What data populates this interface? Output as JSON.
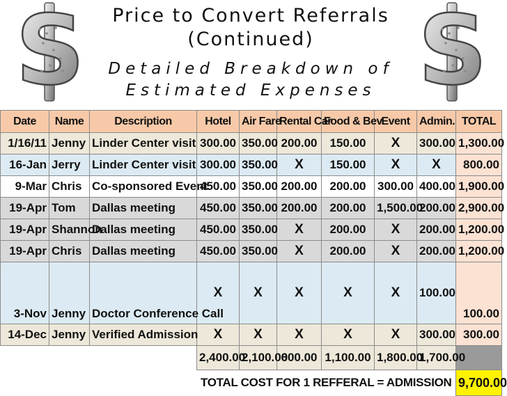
{
  "title_line1": "Price to Convert Referrals",
  "title_line2": "(Continued)",
  "subtitle_line1": "Detailed Breakdown of",
  "subtitle_line2": "Estimated Expenses",
  "decor": {
    "left_icon": "dollar-sign-icon",
    "right_icon": "dollar-sign-icon"
  },
  "table": {
    "headers": [
      "Date",
      "Name",
      "Description",
      "Hotel",
      "Air Fare",
      "Rental Car",
      "Food & Bev.",
      "Event",
      "Admin.",
      "TOTAL"
    ],
    "rows": [
      [
        "1/16/11",
        "Jenny",
        "Linder Center visit",
        "300.00",
        "350.00",
        "200.00",
        "150.00",
        "X",
        "300.00",
        "1,300.00"
      ],
      [
        "16-Jan",
        "Jerry",
        "Linder Center visit",
        "300.00",
        "350.00",
        "X",
        "150.00",
        "X",
        "X",
        "800.00"
      ],
      [
        "9-Mar",
        "Chris",
        "Co-sponsored Event",
        "450.00",
        "350.00",
        "200.00",
        "200.00",
        "300.00",
        "400.00",
        "1,900.00"
      ],
      [
        "19-Apr",
        "Tom",
        "Dallas meeting",
        "450.00",
        "350.00",
        "200.00",
        "200.00",
        "1,500.00",
        "200.00",
        "2,900.00"
      ],
      [
        "19-Apr",
        "Shannon",
        "Dallas meeting",
        "450.00",
        "350.00",
        "X",
        "200.00",
        "X",
        "200.00",
        "1,200.00"
      ],
      [
        "19-Apr",
        "Chris",
        "Dallas meeting",
        "450.00",
        "350.00",
        "X",
        "200.00",
        "X",
        "200.00",
        "1,200.00"
      ],
      [
        "3-Nov",
        "Jenny",
        "Doctor Conference Call",
        "X",
        "X",
        "X",
        "X",
        "X",
        "100.00",
        "100.00"
      ],
      [
        "14-Dec",
        "Jenny",
        "Verified Admission",
        "X",
        "X",
        "X",
        "X",
        "X",
        "300.00",
        "300.00"
      ]
    ],
    "column_totals": [
      "2,400.00",
      "2,100.00",
      "600.00",
      "1,100.00",
      "1,800.00",
      "1,700.00"
    ],
    "grand_total_label": "TOTAL COST FOR 1 REFFERAL = ADMISSION",
    "grand_total_value": "9,700.00"
  },
  "colors": {
    "header": "#f7c9a8",
    "total_col": "#fbe2d3",
    "highlight": "#fff200",
    "row_blue": "#dcebf3",
    "row_gray": "#d9d9d9",
    "row_tan": "#ede8d9"
  }
}
